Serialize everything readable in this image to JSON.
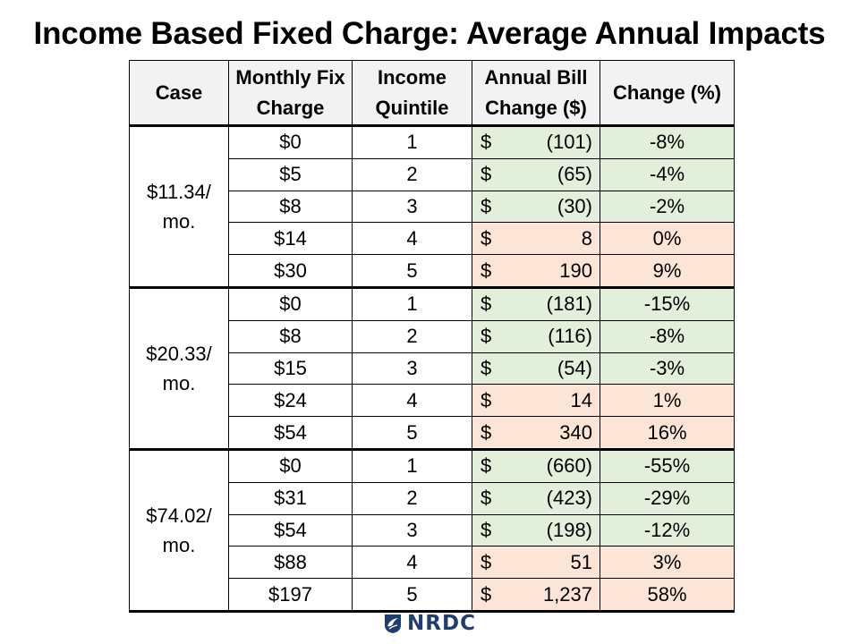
{
  "title": "Income Based Fixed Charge: Average Annual Impacts",
  "table": {
    "headers": [
      "Case",
      "Monthly Fix Charge",
      "Income Quintile",
      "Annual Bill Change ($)",
      "Change (%)"
    ],
    "groups": [
      {
        "case": "$11.34/ mo.",
        "rows": [
          {
            "charge": "$0",
            "quintile": "1",
            "sym": "$",
            "amount": "(101)",
            "pct": "-8%",
            "sign": "neg"
          },
          {
            "charge": "$5",
            "quintile": "2",
            "sym": "$",
            "amount": "(65)",
            "pct": "-4%",
            "sign": "neg"
          },
          {
            "charge": "$8",
            "quintile": "3",
            "sym": "$",
            "amount": "(30)",
            "pct": "-2%",
            "sign": "neg"
          },
          {
            "charge": "$14",
            "quintile": "4",
            "sym": "$",
            "amount": "8",
            "pct": "0%",
            "sign": "pos"
          },
          {
            "charge": "$30",
            "quintile": "5",
            "sym": "$",
            "amount": "190",
            "pct": "9%",
            "sign": "pos"
          }
        ]
      },
      {
        "case": "$20.33/ mo.",
        "rows": [
          {
            "charge": "$0",
            "quintile": "1",
            "sym": "$",
            "amount": "(181)",
            "pct": "-15%",
            "sign": "neg"
          },
          {
            "charge": "$8",
            "quintile": "2",
            "sym": "$",
            "amount": "(116)",
            "pct": "-8%",
            "sign": "neg"
          },
          {
            "charge": "$15",
            "quintile": "3",
            "sym": "$",
            "amount": "(54)",
            "pct": "-3%",
            "sign": "neg"
          },
          {
            "charge": "$24",
            "quintile": "4",
            "sym": "$",
            "amount": "14",
            "pct": "1%",
            "sign": "pos"
          },
          {
            "charge": "$54",
            "quintile": "5",
            "sym": "$",
            "amount": "340",
            "pct": "16%",
            "sign": "pos"
          }
        ]
      },
      {
        "case": "$74.02/ mo.",
        "rows": [
          {
            "charge": "$0",
            "quintile": "1",
            "sym": "$",
            "amount": "(660)",
            "pct": "-55%",
            "sign": "neg"
          },
          {
            "charge": "$31",
            "quintile": "2",
            "sym": "$",
            "amount": "(423)",
            "pct": "-29%",
            "sign": "neg"
          },
          {
            "charge": "$54",
            "quintile": "3",
            "sym": "$",
            "amount": "(198)",
            "pct": "-12%",
            "sign": "neg"
          },
          {
            "charge": "$88",
            "quintile": "4",
            "sym": "$",
            "amount": "51",
            "pct": "3%",
            "sign": "pos"
          },
          {
            "charge": "$197",
            "quintile": "5",
            "sym": "$",
            "amount": "1,237",
            "pct": "58%",
            "sign": "pos"
          }
        ]
      }
    ]
  },
  "logo": {
    "text": "NRDC",
    "icon": "nrdc-bird-icon",
    "color": "#1f3d6e"
  },
  "colors": {
    "negative_fill": "#e2efda",
    "positive_fill": "#fce4d6",
    "header_fill": "#f2f2f2"
  }
}
